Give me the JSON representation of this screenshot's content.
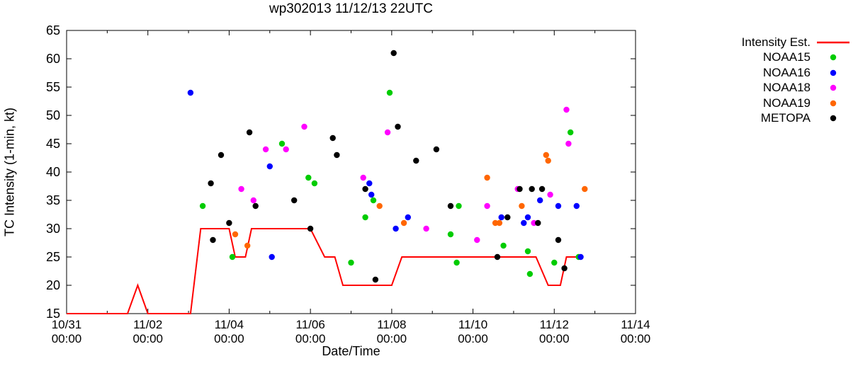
{
  "chart_data": {
    "type": "scatter",
    "title": "wp302013 11/12/13 22UTC",
    "xlabel": "Date/Time",
    "ylabel": "TC Intensity (1-min, kt)",
    "ylim": [
      15,
      65
    ],
    "yticks": [
      15,
      20,
      25,
      30,
      35,
      40,
      45,
      50,
      55,
      60,
      65
    ],
    "xlim_days": [
      0,
      14
    ],
    "xticks": [
      {
        "day": 0,
        "line1": "10/31",
        "line2": "00:00"
      },
      {
        "day": 2,
        "line1": "11/02",
        "line2": "00:00"
      },
      {
        "day": 4,
        "line1": "11/04",
        "line2": "00:00"
      },
      {
        "day": 6,
        "line1": "11/06",
        "line2": "00:00"
      },
      {
        "day": 8,
        "line1": "11/08",
        "line2": "00:00"
      },
      {
        "day": 10,
        "line1": "11/10",
        "line2": "00:00"
      },
      {
        "day": 12,
        "line1": "11/12",
        "line2": "00:00"
      },
      {
        "day": 14,
        "line1": "11/14",
        "line2": "00:00"
      }
    ],
    "grid": false,
    "legend_position": "right-outside",
    "legend": [
      {
        "label": "Intensity Est.",
        "marker": "line",
        "color": "#ff0000"
      },
      {
        "label": "NOAA15",
        "marker": "dot",
        "color": "#00cc00"
      },
      {
        "label": "NOAA16",
        "marker": "dot",
        "color": "#0000ff"
      },
      {
        "label": "NOAA18",
        "marker": "dot",
        "color": "#ff00ff"
      },
      {
        "label": "NOAA19",
        "marker": "dot",
        "color": "#ff6600"
      },
      {
        "label": "METOPA",
        "marker": "dot",
        "color": "#000000"
      }
    ],
    "line_series": {
      "name": "Intensity Est.",
      "color": "#ff0000",
      "points": [
        [
          0,
          15
        ],
        [
          1.5,
          15
        ],
        [
          1.75,
          20
        ],
        [
          2.0,
          15
        ],
        [
          3.05,
          15
        ],
        [
          3.3,
          30
        ],
        [
          4.0,
          30
        ],
        [
          4.15,
          25
        ],
        [
          4.4,
          25
        ],
        [
          4.55,
          30
        ],
        [
          6.0,
          30
        ],
        [
          6.35,
          25
        ],
        [
          6.6,
          25
        ],
        [
          6.8,
          20
        ],
        [
          8.0,
          20
        ],
        [
          8.25,
          25
        ],
        [
          11.55,
          25
        ],
        [
          11.85,
          20
        ],
        [
          12.15,
          20
        ],
        [
          12.3,
          25
        ],
        [
          12.7,
          25
        ]
      ]
    },
    "scatter_series": [
      {
        "name": "NOAA15",
        "color": "#00cc00",
        "points": [
          [
            3.35,
            34
          ],
          [
            4.08,
            25
          ],
          [
            5.3,
            45
          ],
          [
            5.95,
            39
          ],
          [
            6.1,
            38
          ],
          [
            7.0,
            24
          ],
          [
            7.35,
            32
          ],
          [
            7.55,
            35
          ],
          [
            7.95,
            54
          ],
          [
            9.45,
            29
          ],
          [
            9.6,
            24
          ],
          [
            9.65,
            34
          ],
          [
            10.75,
            27
          ],
          [
            11.35,
            26
          ],
          [
            11.4,
            22
          ],
          [
            12.0,
            24
          ],
          [
            12.4,
            47
          ],
          [
            12.6,
            25
          ]
        ]
      },
      {
        "name": "NOAA16",
        "color": "#0000ff",
        "points": [
          [
            3.05,
            54
          ],
          [
            5.0,
            41
          ],
          [
            5.05,
            25
          ],
          [
            7.45,
            38
          ],
          [
            7.5,
            36
          ],
          [
            8.1,
            30
          ],
          [
            8.4,
            32
          ],
          [
            10.7,
            32
          ],
          [
            11.25,
            31
          ],
          [
            11.35,
            32
          ],
          [
            11.65,
            35
          ],
          [
            12.1,
            34
          ],
          [
            12.55,
            34
          ],
          [
            12.65,
            25
          ]
        ]
      },
      {
        "name": "NOAA18",
        "color": "#ff00ff",
        "points": [
          [
            4.3,
            37
          ],
          [
            4.6,
            35
          ],
          [
            4.9,
            44
          ],
          [
            5.4,
            44
          ],
          [
            5.85,
            48
          ],
          [
            7.3,
            39
          ],
          [
            7.9,
            47
          ],
          [
            8.85,
            30
          ],
          [
            10.1,
            28
          ],
          [
            10.35,
            34
          ],
          [
            11.1,
            37
          ],
          [
            11.5,
            31
          ],
          [
            11.9,
            36
          ],
          [
            12.3,
            51
          ],
          [
            12.35,
            45
          ]
        ]
      },
      {
        "name": "NOAA19",
        "color": "#ff6600",
        "points": [
          [
            4.15,
            29
          ],
          [
            4.45,
            27
          ],
          [
            7.7,
            34
          ],
          [
            8.3,
            31
          ],
          [
            10.35,
            39
          ],
          [
            10.55,
            31
          ],
          [
            10.65,
            31
          ],
          [
            11.2,
            34
          ],
          [
            11.8,
            43
          ],
          [
            11.85,
            42
          ],
          [
            12.75,
            37
          ]
        ]
      },
      {
        "name": "METOPA",
        "color": "#000000",
        "points": [
          [
            3.55,
            38
          ],
          [
            3.6,
            28
          ],
          [
            3.8,
            43
          ],
          [
            4.0,
            31
          ],
          [
            4.5,
            47
          ],
          [
            4.65,
            34
          ],
          [
            5.6,
            35
          ],
          [
            6.0,
            30
          ],
          [
            6.55,
            46
          ],
          [
            6.65,
            43
          ],
          [
            7.35,
            37
          ],
          [
            7.6,
            21
          ],
          [
            8.05,
            61
          ],
          [
            8.15,
            48
          ],
          [
            8.6,
            42
          ],
          [
            9.1,
            44
          ],
          [
            9.45,
            34
          ],
          [
            10.6,
            25
          ],
          [
            10.85,
            32
          ],
          [
            11.15,
            37
          ],
          [
            11.45,
            37
          ],
          [
            11.6,
            31
          ],
          [
            11.7,
            37
          ],
          [
            12.1,
            28
          ],
          [
            12.25,
            23
          ]
        ]
      }
    ]
  }
}
